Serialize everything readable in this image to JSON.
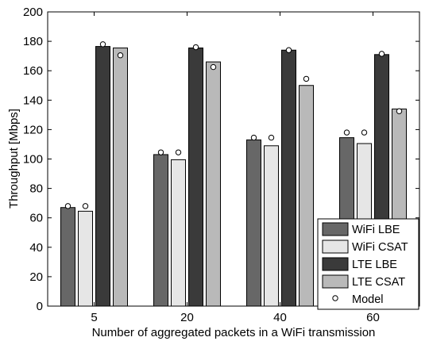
{
  "chart_data": {
    "type": "bar",
    "title": "",
    "xlabel": "Number of aggregated packets in a WiFi transmission",
    "ylabel": "Throughput [Mbps]",
    "ylim": [
      0,
      200
    ],
    "yticks": [
      0,
      20,
      40,
      60,
      80,
      100,
      120,
      140,
      160,
      180,
      200
    ],
    "categories": [
      "5",
      "20",
      "40",
      "60"
    ],
    "series": [
      {
        "name": "WiFi LBE",
        "color": "#676767",
        "values": [
          67,
          103,
          113,
          114.5
        ]
      },
      {
        "name": "WiFi CSAT",
        "color": "#e6e6e6",
        "values": [
          64.5,
          99.5,
          109,
          110.5
        ]
      },
      {
        "name": "LTE LBE",
        "color": "#3a3a3a",
        "values": [
          176.5,
          175.5,
          174,
          171
        ]
      },
      {
        "name": "LTE CSAT",
        "color": "#b9b9b9",
        "values": [
          175.5,
          166,
          150,
          134
        ]
      }
    ],
    "model": {
      "name": "Model",
      "marker": "open-circle",
      "values": [
        [
          68,
          68,
          178,
          170.5
        ],
        [
          104.5,
          104.5,
          176,
          162.5
        ],
        [
          114.5,
          114.5,
          174,
          154.5
        ],
        [
          118,
          118,
          171.5,
          132.5
        ]
      ]
    },
    "legend_position": "bottom-right",
    "grid": false
  }
}
